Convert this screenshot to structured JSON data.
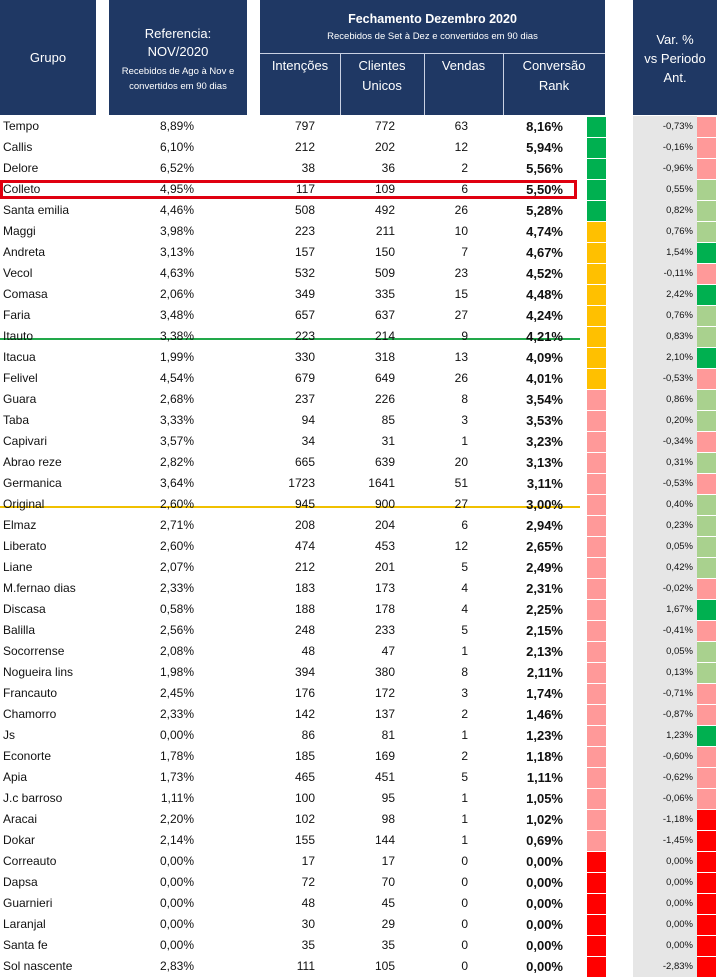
{
  "header": {
    "grupo": "Grupo",
    "ref_title1": "Referencia:",
    "ref_title2": "NOV/2020",
    "ref_sub1": "Recebidos de Ago à Nov e",
    "ref_sub2": "convertidos em 90 dias",
    "fech_title": "Fechamento Dezembro 2020",
    "fech_sub": "Recebidos de Set à Dez e convertidos em 90 dias",
    "intencoes": "Intenções",
    "clientes1": "Clientes",
    "clientes2": "Unicos",
    "vendas": "Vendas",
    "conversao1": "Conversão",
    "conversao2": "Rank",
    "var1": "Var. %",
    "var2": "vs Periodo",
    "var3": "Ant."
  },
  "colors": {
    "rank_green": "#00b050",
    "rank_yellow": "#ffc000",
    "rank_pink": "#ff9999",
    "rank_red": "#ff0000",
    "var_green_light": "#a9d18e",
    "var_green": "#00b050",
    "var_pink": "#ff9999",
    "var_red": "#ff0000"
  },
  "chart_data": {
    "type": "table",
    "columns": [
      "Grupo",
      "Referencia NOV/2020",
      "Intenções",
      "Clientes Unicos",
      "Vendas",
      "Conversão",
      "Var. % vs Periodo Ant."
    ],
    "rows": [
      {
        "grupo": "Tempo",
        "ref": "8,89%",
        "int": "797",
        "cli": "772",
        "ven": "63",
        "conv": "8,16%",
        "var": "-0,73%",
        "rank": "green",
        "vcol": "pink"
      },
      {
        "grupo": "Callis",
        "ref": "6,10%",
        "int": "212",
        "cli": "202",
        "ven": "12",
        "conv": "5,94%",
        "var": "-0,16%",
        "rank": "green",
        "vcol": "pink"
      },
      {
        "grupo": "Delore",
        "ref": "6,52%",
        "int": "38",
        "cli": "36",
        "ven": "2",
        "conv": "5,56%",
        "var": "-0,96%",
        "rank": "green",
        "vcol": "pink"
      },
      {
        "grupo": "Colleto",
        "ref": "4,95%",
        "int": "117",
        "cli": "109",
        "ven": "6",
        "conv": "5,50%",
        "var": "0,55%",
        "rank": "green",
        "vcol": "lgreen"
      },
      {
        "grupo": "Santa emilia",
        "ref": "4,46%",
        "int": "508",
        "cli": "492",
        "ven": "26",
        "conv": "5,28%",
        "var": "0,82%",
        "rank": "green",
        "vcol": "lgreen"
      },
      {
        "grupo": "Maggi",
        "ref": "3,98%",
        "int": "223",
        "cli": "211",
        "ven": "10",
        "conv": "4,74%",
        "var": "0,76%",
        "rank": "yellow",
        "vcol": "lgreen"
      },
      {
        "grupo": "Andreta",
        "ref": "3,13%",
        "int": "157",
        "cli": "150",
        "ven": "7",
        "conv": "4,67%",
        "var": "1,54%",
        "rank": "yellow",
        "vcol": "green"
      },
      {
        "grupo": "Vecol",
        "ref": "4,63%",
        "int": "532",
        "cli": "509",
        "ven": "23",
        "conv": "4,52%",
        "var": "-0,11%",
        "rank": "yellow",
        "vcol": "pink"
      },
      {
        "grupo": "Comasa",
        "ref": "2,06%",
        "int": "349",
        "cli": "335",
        "ven": "15",
        "conv": "4,48%",
        "var": "2,42%",
        "rank": "yellow",
        "vcol": "green"
      },
      {
        "grupo": "Faria",
        "ref": "3,48%",
        "int": "657",
        "cli": "637",
        "ven": "27",
        "conv": "4,24%",
        "var": "0,76%",
        "rank": "yellow",
        "vcol": "lgreen"
      },
      {
        "grupo": "Itauto",
        "ref": "3,38%",
        "int": "223",
        "cli": "214",
        "ven": "9",
        "conv": "4,21%",
        "var": "0,83%",
        "rank": "yellow",
        "vcol": "lgreen"
      },
      {
        "grupo": "Itacua",
        "ref": "1,99%",
        "int": "330",
        "cli": "318",
        "ven": "13",
        "conv": "4,09%",
        "var": "2,10%",
        "rank": "yellow",
        "vcol": "green"
      },
      {
        "grupo": "Felivel",
        "ref": "4,54%",
        "int": "679",
        "cli": "649",
        "ven": "26",
        "conv": "4,01%",
        "var": "-0,53%",
        "rank": "yellow",
        "vcol": "pink"
      },
      {
        "grupo": "Guara",
        "ref": "2,68%",
        "int": "237",
        "cli": "226",
        "ven": "8",
        "conv": "3,54%",
        "var": "0,86%",
        "rank": "pink",
        "vcol": "lgreen"
      },
      {
        "grupo": "Taba",
        "ref": "3,33%",
        "int": "94",
        "cli": "85",
        "ven": "3",
        "conv": "3,53%",
        "var": "0,20%",
        "rank": "pink",
        "vcol": "lgreen"
      },
      {
        "grupo": "Capivari",
        "ref": "3,57%",
        "int": "34",
        "cli": "31",
        "ven": "1",
        "conv": "3,23%",
        "var": "-0,34%",
        "rank": "pink",
        "vcol": "pink"
      },
      {
        "grupo": "Abrao reze",
        "ref": "2,82%",
        "int": "665",
        "cli": "639",
        "ven": "20",
        "conv": "3,13%",
        "var": "0,31%",
        "rank": "pink",
        "vcol": "lgreen"
      },
      {
        "grupo": "Germanica",
        "ref": "3,64%",
        "int": "1723",
        "cli": "1641",
        "ven": "51",
        "conv": "3,11%",
        "var": "-0,53%",
        "rank": "pink",
        "vcol": "pink"
      },
      {
        "grupo": "Original",
        "ref": "2,60%",
        "int": "945",
        "cli": "900",
        "ven": "27",
        "conv": "3,00%",
        "var": "0,40%",
        "rank": "pink",
        "vcol": "lgreen"
      },
      {
        "grupo": "Elmaz",
        "ref": "2,71%",
        "int": "208",
        "cli": "204",
        "ven": "6",
        "conv": "2,94%",
        "var": "0,23%",
        "rank": "pink",
        "vcol": "lgreen"
      },
      {
        "grupo": "Liberato",
        "ref": "2,60%",
        "int": "474",
        "cli": "453",
        "ven": "12",
        "conv": "2,65%",
        "var": "0,05%",
        "rank": "pink",
        "vcol": "lgreen"
      },
      {
        "grupo": "Liane",
        "ref": "2,07%",
        "int": "212",
        "cli": "201",
        "ven": "5",
        "conv": "2,49%",
        "var": "0,42%",
        "rank": "pink",
        "vcol": "lgreen"
      },
      {
        "grupo": "M.fernao dias",
        "ref": "2,33%",
        "int": "183",
        "cli": "173",
        "ven": "4",
        "conv": "2,31%",
        "var": "-0,02%",
        "rank": "pink",
        "vcol": "pink"
      },
      {
        "grupo": "Discasa",
        "ref": "0,58%",
        "int": "188",
        "cli": "178",
        "ven": "4",
        "conv": "2,25%",
        "var": "1,67%",
        "rank": "pink",
        "vcol": "green"
      },
      {
        "grupo": "Balilla",
        "ref": "2,56%",
        "int": "248",
        "cli": "233",
        "ven": "5",
        "conv": "2,15%",
        "var": "-0,41%",
        "rank": "pink",
        "vcol": "pink"
      },
      {
        "grupo": "Socorrense",
        "ref": "2,08%",
        "int": "48",
        "cli": "47",
        "ven": "1",
        "conv": "2,13%",
        "var": "0,05%",
        "rank": "pink",
        "vcol": "lgreen"
      },
      {
        "grupo": "Nogueira lins",
        "ref": "1,98%",
        "int": "394",
        "cli": "380",
        "ven": "8",
        "conv": "2,11%",
        "var": "0,13%",
        "rank": "pink",
        "vcol": "lgreen"
      },
      {
        "grupo": "Francauto",
        "ref": "2,45%",
        "int": "176",
        "cli": "172",
        "ven": "3",
        "conv": "1,74%",
        "var": "-0,71%",
        "rank": "pink",
        "vcol": "pink"
      },
      {
        "grupo": "Chamorro",
        "ref": "2,33%",
        "int": "142",
        "cli": "137",
        "ven": "2",
        "conv": "1,46%",
        "var": "-0,87%",
        "rank": "pink",
        "vcol": "pink"
      },
      {
        "grupo": "Js",
        "ref": "0,00%",
        "int": "86",
        "cli": "81",
        "ven": "1",
        "conv": "1,23%",
        "var": "1,23%",
        "rank": "pink",
        "vcol": "green"
      },
      {
        "grupo": "Econorte",
        "ref": "1,78%",
        "int": "185",
        "cli": "169",
        "ven": "2",
        "conv": "1,18%",
        "var": "-0,60%",
        "rank": "pink",
        "vcol": "pink"
      },
      {
        "grupo": "Apia",
        "ref": "1,73%",
        "int": "465",
        "cli": "451",
        "ven": "5",
        "conv": "1,11%",
        "var": "-0,62%",
        "rank": "pink",
        "vcol": "pink"
      },
      {
        "grupo": "J.c barroso",
        "ref": "1,11%",
        "int": "100",
        "cli": "95",
        "ven": "1",
        "conv": "1,05%",
        "var": "-0,06%",
        "rank": "pink",
        "vcol": "pink"
      },
      {
        "grupo": "Aracai",
        "ref": "2,20%",
        "int": "102",
        "cli": "98",
        "ven": "1",
        "conv": "1,02%",
        "var": "-1,18%",
        "rank": "pink",
        "vcol": "red"
      },
      {
        "grupo": "Dokar",
        "ref": "2,14%",
        "int": "155",
        "cli": "144",
        "ven": "1",
        "conv": "0,69%",
        "var": "-1,45%",
        "rank": "pink",
        "vcol": "red"
      },
      {
        "grupo": "Correauto",
        "ref": "0,00%",
        "int": "17",
        "cli": "17",
        "ven": "0",
        "conv": "0,00%",
        "var": "0,00%",
        "rank": "red",
        "vcol": "red"
      },
      {
        "grupo": "Dapsa",
        "ref": "0,00%",
        "int": "72",
        "cli": "70",
        "ven": "0",
        "conv": "0,00%",
        "var": "0,00%",
        "rank": "red",
        "vcol": "red"
      },
      {
        "grupo": "Guarnieri",
        "ref": "0,00%",
        "int": "48",
        "cli": "45",
        "ven": "0",
        "conv": "0,00%",
        "var": "0,00%",
        "rank": "red",
        "vcol": "red"
      },
      {
        "grupo": "Laranjal",
        "ref": "0,00%",
        "int": "30",
        "cli": "29",
        "ven": "0",
        "conv": "0,00%",
        "var": "0,00%",
        "rank": "red",
        "vcol": "red"
      },
      {
        "grupo": "Santa fe",
        "ref": "0,00%",
        "int": "35",
        "cli": "35",
        "ven": "0",
        "conv": "0,00%",
        "var": "0,00%",
        "rank": "red",
        "vcol": "red"
      },
      {
        "grupo": "Sol nascente",
        "ref": "2,83%",
        "int": "111",
        "cli": "105",
        "ven": "0",
        "conv": "0,00%",
        "var": "-2,83%",
        "rank": "red",
        "vcol": "red"
      }
    ]
  }
}
